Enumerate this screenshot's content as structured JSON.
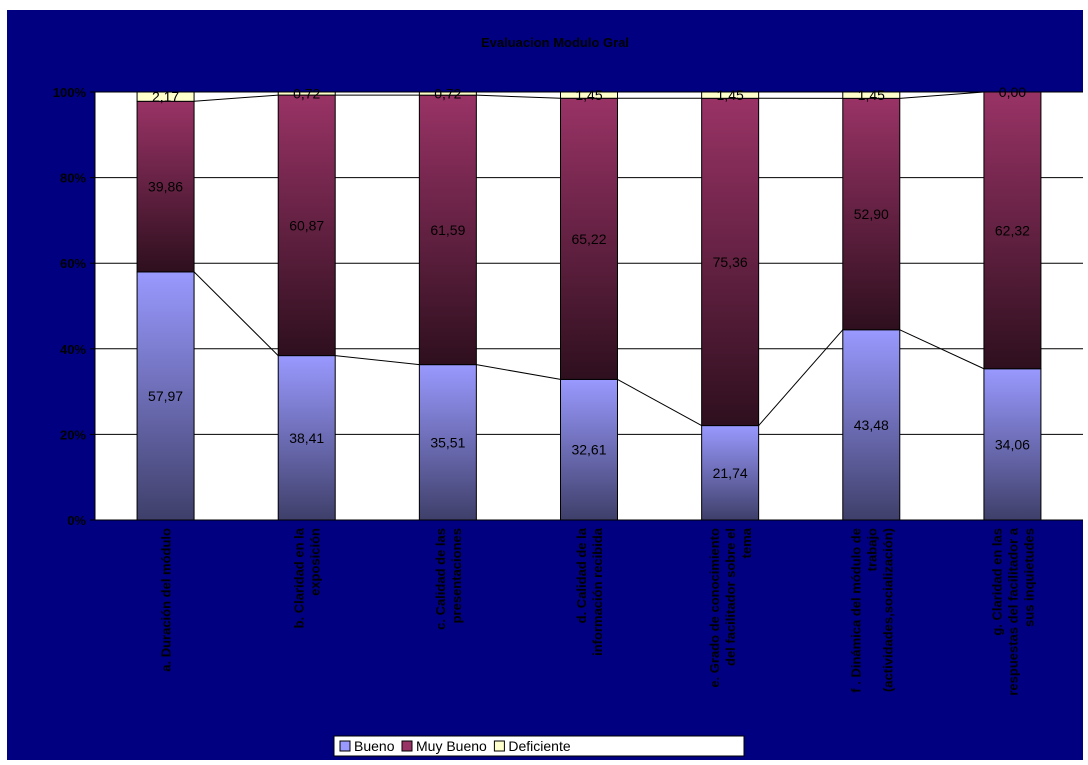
{
  "chart_data": {
    "type": "bar",
    "stacked": "percent",
    "title": "Evaluacion Modulo Gral",
    "categories": [
      [
        "a. Duración del módulo"
      ],
      [
        "b. Claridad en la",
        "exposición"
      ],
      [
        "c. Calidad de las",
        "presentaciones"
      ],
      [
        "d. Calidad de la",
        "información recibida"
      ],
      [
        "e. Grado de conocimiento",
        "del facilitador sobre el",
        "tema"
      ],
      [
        "f . Dinámica del módulo de",
        "trabajo",
        "(actividades,socialización)"
      ],
      [
        "g. Claridad en las",
        "respuestas del facilitador a",
        "sus inquietudes"
      ]
    ],
    "series": [
      {
        "name": "Bueno",
        "values": [
          57.97,
          38.41,
          35.51,
          32.61,
          21.74,
          43.48,
          34.06
        ],
        "labels": [
          "57,97",
          "38,41",
          "35,51",
          "32,61",
          "21,74",
          "43,48",
          "34,06"
        ]
      },
      {
        "name": "Muy Bueno",
        "values": [
          39.86,
          60.87,
          61.59,
          65.22,
          75.36,
          52.9,
          62.32
        ],
        "labels": [
          "39,86",
          "60,87",
          "61,59",
          "65,22",
          "75,36",
          "52,90",
          "62,32"
        ]
      },
      {
        "name": "Deficiente",
        "values": [
          2.17,
          0.72,
          0.72,
          1.45,
          1.45,
          1.45,
          0.0
        ],
        "labels": [
          "2,17",
          "0,72",
          "0,72",
          "1,45",
          "1,45",
          "1,45",
          "0,00"
        ]
      }
    ],
    "ylim": [
      0,
      100
    ],
    "yticks": [
      "0%",
      "20%",
      "40%",
      "60%",
      "80%",
      "100%"
    ],
    "grid": true,
    "series_lines": true,
    "legend_position": "bottom",
    "colors": {
      "background": "#000080",
      "plot_area": "#ffffff",
      "bueno_top": "#9999ff",
      "bueno_bottom": "#3f3f6a",
      "muy_bueno_top": "#993366",
      "muy_bueno_bottom": "#2e0f1e",
      "deficiente": "#ffffcc",
      "text": "#000000"
    }
  }
}
